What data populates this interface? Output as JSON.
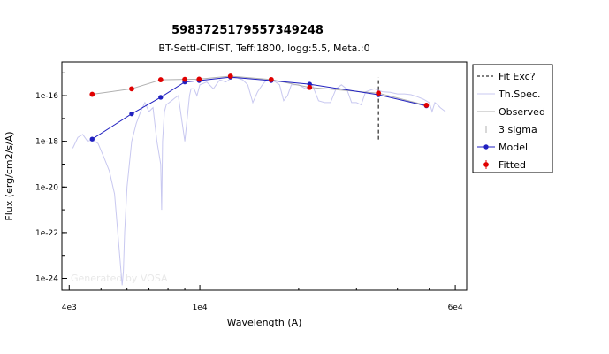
{
  "chart_data": {
    "type": "line",
    "title": "5983725179557349248",
    "subtitle": "BT-Settl-CIFIST, Teff:1800, logg:5.5, Meta.:0",
    "xlabel": "Wavelength (A)",
    "ylabel": "Flux (erg/cm2/s/A)",
    "x_scale": "log",
    "y_scale": "log",
    "xlim": [
      3800,
      65000
    ],
    "ylim": [
      3e-25,
      3e-15
    ],
    "x_ticks": [
      {
        "value": 4000,
        "label": "4e3"
      },
      {
        "value": 10000,
        "label": "1e4"
      },
      {
        "value": 60000,
        "label": "6e4"
      }
    ],
    "y_ticks": [
      {
        "value": 1e-16,
        "label": "1e-16"
      },
      {
        "value": 1e-18,
        "label": "1e-18"
      },
      {
        "value": 1e-20,
        "label": "1e-20"
      },
      {
        "value": 1e-22,
        "label": "1e-22"
      },
      {
        "value": 1e-24,
        "label": "1e-24"
      }
    ],
    "fit_exclusion": {
      "x": 35000,
      "y_range": [
        1.2e-18,
        6.3e-16
      ]
    },
    "series": [
      {
        "name": "Model",
        "color": "#2020c0",
        "x": [
          4700,
          6200,
          7600,
          9000,
          9950,
          12400,
          16500,
          21600,
          35000,
          49000
        ],
        "y": [
          1.25e-18,
          1.6e-17,
          8.5e-17,
          4e-16,
          4.6e-16,
          6.5e-16,
          4.6e-16,
          3.2e-16,
          1.1e-16,
          3.6e-17
        ]
      },
      {
        "name": "Fitted",
        "color": "#e00000",
        "x": [
          4700,
          6200,
          7600,
          9000,
          9950,
          12400,
          16500,
          21600,
          35000,
          49000
        ],
        "y": [
          1.15e-16,
          2e-16,
          5e-16,
          5.2e-16,
          5.3e-16,
          7.2e-16,
          5.1e-16,
          2.3e-16,
          1.3e-16,
          3.8e-17
        ]
      },
      {
        "name": "Observed",
        "color": "#b0b0b0",
        "x": [
          4700,
          6200,
          7600,
          9000,
          9950,
          12400,
          16500,
          21600,
          35000,
          49000
        ],
        "y": [
          1.15e-16,
          2e-16,
          5e-16,
          5.2e-16,
          5.3e-16,
          7.2e-16,
          5.1e-16,
          2.3e-16,
          1.3e-16,
          3.8e-17
        ]
      },
      {
        "name": "Th.Spec.",
        "color": "#c8c8f0",
        "x": [
          4100,
          4250,
          4400,
          4550,
          4700,
          4900,
          5100,
          5300,
          5500,
          5700,
          5800,
          5850,
          5900,
          6000,
          6200,
          6400,
          6600,
          6800,
          7000,
          7200,
          7400,
          7600,
          7650,
          7700,
          7800,
          7900,
          8200,
          8400,
          8600,
          9000,
          9300,
          9400,
          9600,
          9800,
          10000,
          10500,
          11000,
          11500,
          12000,
          12500,
          13000,
          13500,
          14000,
          14500,
          15000,
          15500,
          16000,
          16500,
          17000,
          17500,
          18000,
          18500,
          19000,
          20000,
          21000,
          22000,
          23000,
          24000,
          25000,
          26000,
          27000,
          28000,
          29000,
          30000,
          31000,
          32000,
          34000,
          36000,
          38000,
          40000,
          42000,
          44000,
          46000,
          48000,
          50000,
          51000,
          52000,
          53000,
          54000,
          56000
        ],
        "y": [
          5e-19,
          1.5e-18,
          2e-18,
          1e-18,
          1.2e-18,
          8e-19,
          2e-19,
          5e-20,
          5e-21,
          1e-23,
          5e-25,
          2e-24,
          1e-22,
          1e-20,
          1e-18,
          6e-18,
          2e-17,
          5e-17,
          2e-17,
          3e-17,
          1e-18,
          1e-19,
          1e-21,
          1e-18,
          2e-17,
          4e-17,
          6e-17,
          8e-17,
          1e-16,
          1e-18,
          1e-16,
          2e-16,
          2e-16,
          1e-16,
          3e-16,
          4e-16,
          2e-16,
          5e-16,
          4e-16,
          6e-16,
          6e-16,
          5e-16,
          3e-16,
          5e-17,
          1.5e-16,
          3e-16,
          5e-16,
          5e-16,
          4e-16,
          3e-16,
          6e-17,
          1e-16,
          3e-16,
          3e-16,
          2e-16,
          3e-16,
          6e-17,
          5e-17,
          5e-17,
          2e-16,
          3e-16,
          2e-16,
          5e-17,
          5e-17,
          4e-17,
          1.5e-16,
          2e-16,
          1.5e-16,
          1.4e-16,
          1.2e-16,
          1.2e-16,
          1.1e-16,
          9e-17,
          7e-17,
          5e-17,
          2e-17,
          5e-17,
          4e-17,
          3e-17,
          2e-17
        ]
      }
    ],
    "legend": {
      "placement": "right",
      "entries": [
        {
          "label": "Fit Exc?",
          "style": "dashed",
          "color": "#000000"
        },
        {
          "label": "Th.Spec.",
          "style": "line",
          "color": "#c8c8f0"
        },
        {
          "label": "Observed",
          "style": "line",
          "color": "#b0b0b0"
        },
        {
          "label": "3 sigma",
          "style": "errorbar",
          "color": "#b0b0b0"
        },
        {
          "label": "Model",
          "style": "line-marker",
          "color": "#2020c0"
        },
        {
          "label": "Fitted",
          "style": "marker-errorbar",
          "color": "#e00000"
        }
      ]
    },
    "watermark": "Generated by VOSA",
    "grid": false
  }
}
